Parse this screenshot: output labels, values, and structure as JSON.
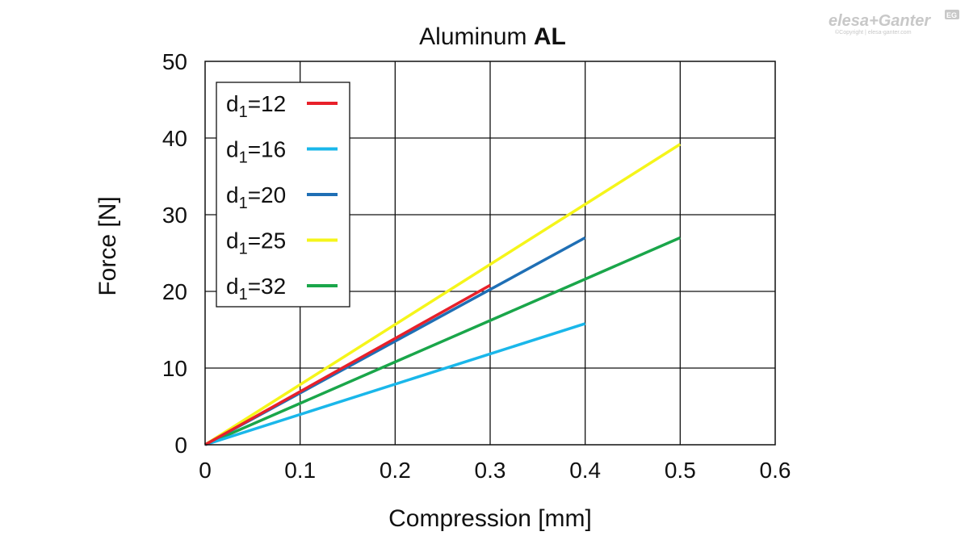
{
  "logo": {
    "brand_a": "elesa",
    "plus": "+",
    "brand_b": "Ganter",
    "badge": "EG",
    "copyright": "©Copyright | elesa-ganter.com"
  },
  "chart_data": {
    "type": "line",
    "title_regular": "Aluminum ",
    "title_bold": "AL",
    "xlabel": "Compression [mm]",
    "ylabel": "Force [N]",
    "xlim": [
      0,
      0.6
    ],
    "ylim": [
      0,
      50
    ],
    "xticks": [
      "0",
      "0.1",
      "0.2",
      "0.3",
      "0.4",
      "0.5",
      "0.6"
    ],
    "yticks": [
      "0",
      "10",
      "20",
      "30",
      "40",
      "50"
    ],
    "grid": true,
    "legend_position": "top-left",
    "series": [
      {
        "name": "d1=12",
        "name_base": "d",
        "name_sub": "1",
        "name_rest": "=12",
        "color": "#e8202a",
        "x": [
          0,
          0.3
        ],
        "y": [
          0,
          20.8
        ]
      },
      {
        "name": "d1=16",
        "name_base": "d",
        "name_sub": "1",
        "name_rest": "=16",
        "color": "#1ab7ea",
        "x": [
          0,
          0.4
        ],
        "y": [
          0,
          15.8
        ]
      },
      {
        "name": "d1=20",
        "name_base": "d",
        "name_sub": "1",
        "name_rest": "=20",
        "color": "#1f6fb5",
        "x": [
          0,
          0.4
        ],
        "y": [
          0,
          27
        ]
      },
      {
        "name": "d1=25",
        "name_base": "d",
        "name_sub": "1",
        "name_rest": "=25",
        "color": "#f5f51a",
        "x": [
          0,
          0.5
        ],
        "y": [
          0,
          39.2
        ]
      },
      {
        "name": "d1=32",
        "name_base": "d",
        "name_sub": "1",
        "name_rest": "=32",
        "color": "#1aa64a",
        "x": [
          0,
          0.5
        ],
        "y": [
          0,
          27
        ]
      }
    ]
  }
}
